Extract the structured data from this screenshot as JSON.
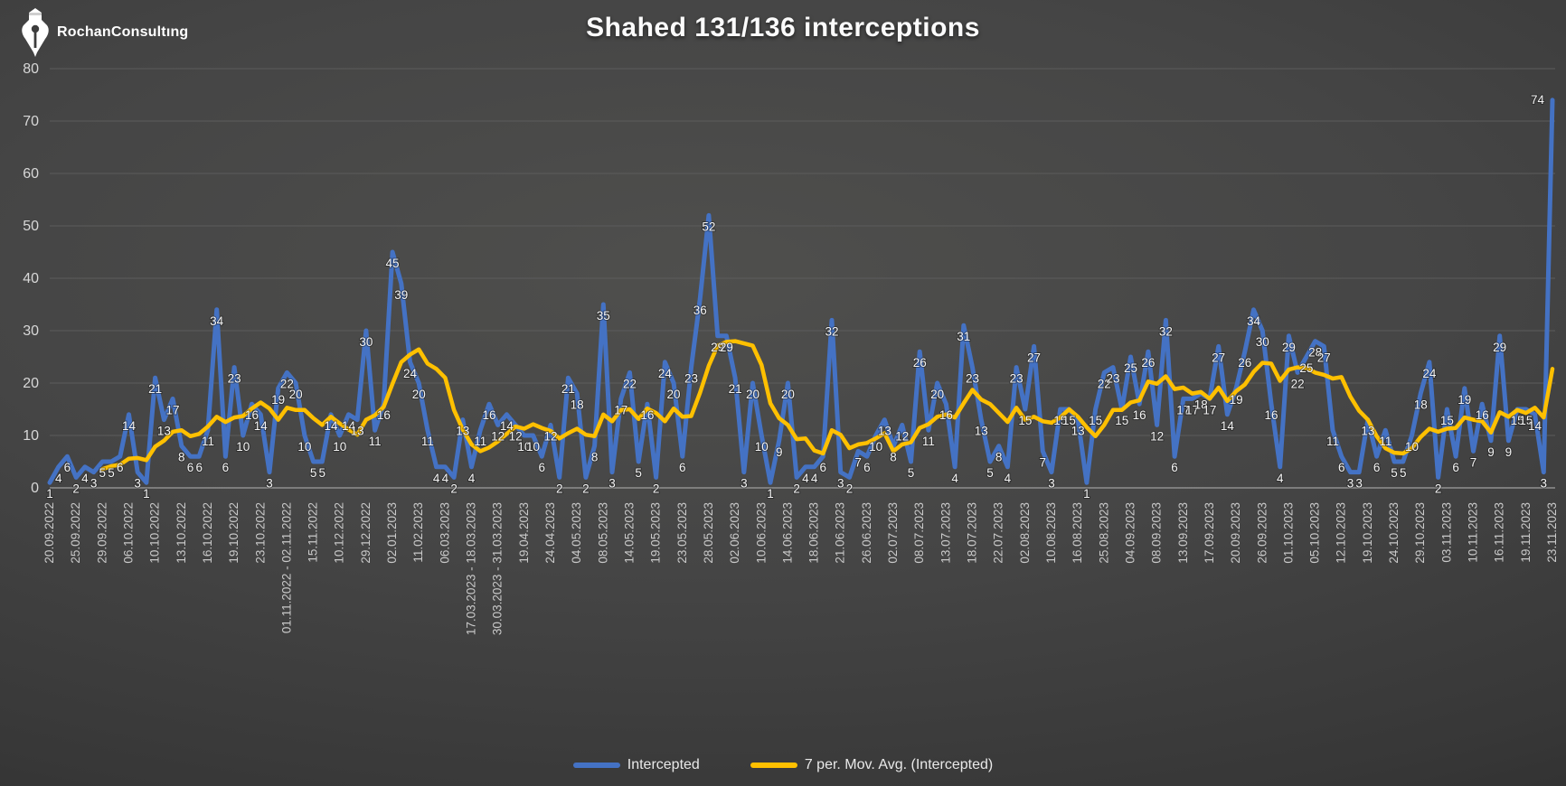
{
  "title": "Shahed 131/136 interceptions",
  "logo": {
    "text": "RochanConsultıng"
  },
  "legend": [
    {
      "label": "Intercepted",
      "color": "#4472C4"
    },
    {
      "label": "7 per. Mov. Avg. (Intercepted)",
      "color": "#FFC000"
    }
  ],
  "colors": {
    "intercepted_line": "#4472C4",
    "moving_avg_line": "#FFC000",
    "gridline": "#5c5c5c",
    "axis_line": "#8f8f8f",
    "data_label": "#f4f4f4",
    "tick_label": "#c9c9c9"
  },
  "chart_data": {
    "type": "line",
    "title": "Shahed 131/136 interceptions",
    "ylabel": "",
    "xlabel": "",
    "ylim": [
      0,
      80
    ],
    "yticks": [
      0,
      10,
      20,
      30,
      40,
      50,
      60,
      70,
      80
    ],
    "grid": true,
    "legend_position": "bottom",
    "label_every_n_points": 3,
    "x_labels": [
      "20.09.2022",
      "25.09.2022",
      "29.09.2022",
      "06.10.2022",
      "10.10.2022",
      "13.10.2022",
      "16.10.2022",
      "19.10.2022",
      "23.10.2022",
      "01.11.2022 - 02.11.2022",
      "15.11.2022",
      "10.12.2022",
      "29.12.2022",
      "02.01.2023",
      "11.02.2023",
      "06.03.2023",
      "17.03.2023 - 18.03.2023",
      "30.03.2023 - 31.03.2023",
      "19.04.2023",
      "24.04.2023",
      "04.05.2023",
      "08.05.2023",
      "14.05.2023",
      "19.05.2023",
      "23.05.2023",
      "28.05.2023",
      "02.06.2023",
      "10.06.2023",
      "14.06.2023",
      "18.06.2023",
      "21.06.2023",
      "26.06.2023",
      "02.07.2023",
      "08.07.2023",
      "13.07.2023",
      "18.07.2023",
      "22.07.2023",
      "02.08.2023",
      "10.08.2023",
      "16.08.2023",
      "25.08.2023",
      "04.09.2023",
      "08.09.2023",
      "13.09.2023",
      "17.09.2023",
      "20.09.2023",
      "26.09.2023",
      "01.10.2023",
      "05.10.2023",
      "12.10.2023",
      "19.10.2023",
      "24.10.2023",
      "29.10.2023",
      "03.11.2023",
      "10.11.2023",
      "16.11.2023",
      "19.11.2023",
      "23.11.2023"
    ],
    "series": [
      {
        "name": "Intercepted",
        "color": "#4472C4",
        "values": [
          1,
          4,
          6,
          2,
          4,
          3,
          5,
          5,
          6,
          14,
          3,
          1,
          21,
          13,
          17,
          8,
          6,
          6,
          11,
          34,
          6,
          23,
          10,
          16,
          14,
          3,
          19,
          22,
          20,
          10,
          5,
          5,
          14,
          10,
          14,
          13,
          30,
          11,
          16,
          45,
          39,
          24,
          20,
          11,
          4,
          4,
          2,
          13,
          4,
          11,
          16,
          12,
          14,
          12,
          10,
          10,
          6,
          12,
          2,
          21,
          18,
          2,
          8,
          35,
          3,
          17,
          22,
          5,
          16,
          2,
          24,
          20,
          6,
          23,
          36,
          52,
          29,
          29,
          21,
          3,
          20,
          10,
          1,
          9,
          20,
          2,
          4,
          4,
          6,
          32,
          3,
          2,
          7,
          6,
          10,
          13,
          8,
          12,
          5,
          26,
          11,
          20,
          16,
          4,
          31,
          23,
          13,
          5,
          8,
          4,
          23,
          15,
          27,
          7,
          3,
          15,
          15,
          13,
          1,
          15,
          22,
          23,
          15,
          25,
          16,
          26,
          12,
          32,
          6,
          17,
          17,
          18,
          17,
          27,
          14,
          19,
          26,
          34,
          30,
          16,
          4,
          29,
          22,
          25,
          28,
          27,
          11,
          6,
          3,
          3,
          13,
          6,
          11,
          5,
          5,
          10,
          18,
          24,
          2,
          15,
          6,
          19,
          7,
          16,
          9,
          29,
          9,
          15,
          15,
          14,
          3,
          74
        ]
      },
      {
        "name": "7 per. Mov. Avg. (Intercepted)",
        "color": "#FFC000",
        "derived": "trailing_moving_average_of_series_0",
        "window": 7
      }
    ]
  }
}
